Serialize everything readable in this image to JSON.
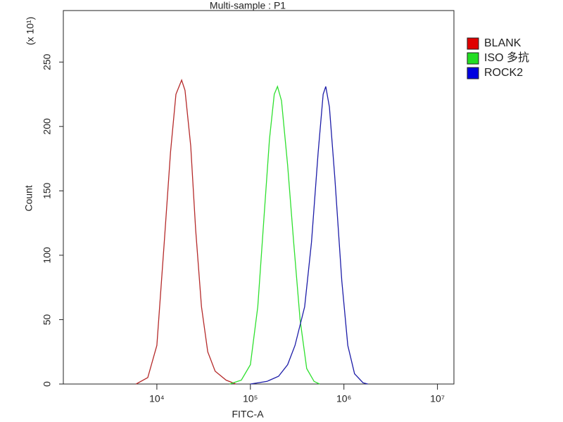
{
  "chart_data": {
    "type": "line",
    "title": "Multi-sample : P1",
    "x_label": "FITC-A",
    "y_label": "Count",
    "y_multiplier": "(x 10¹)",
    "xscale": "log",
    "xlim": [
      1000,
      15000000
    ],
    "xticks": [
      {
        "value": 10000,
        "label": "10⁴"
      },
      {
        "value": 100000,
        "label": "10⁵"
      },
      {
        "value": 1000000,
        "label": "10⁶"
      },
      {
        "value": 10000000,
        "label": "10⁷"
      }
    ],
    "ylim": [
      0,
      290
    ],
    "yticks": [
      0,
      50,
      100,
      150,
      200,
      250
    ],
    "legend": "right",
    "series": [
      {
        "name": "BLANK",
        "color": "#b52a2a",
        "legend_color": "#e00000",
        "x": [
          6000,
          8000,
          10000,
          12000,
          14000,
          16000,
          18400,
          20000,
          23000,
          26000,
          30000,
          35000,
          42000,
          55000,
          70000
        ],
        "values": [
          0,
          5,
          30,
          110,
          180,
          225,
          236,
          228,
          185,
          120,
          60,
          25,
          10,
          3,
          0
        ]
      },
      {
        "name": "ISO 多抗",
        "color": "#2ee02e",
        "legend_color": "#22dd22",
        "x": [
          60000,
          80000,
          100000,
          120000,
          140000,
          160000,
          180000,
          195000,
          215000,
          250000,
          290000,
          340000,
          400000,
          480000,
          550000
        ],
        "values": [
          0,
          3,
          15,
          60,
          130,
          190,
          225,
          231,
          220,
          170,
          110,
          50,
          12,
          2,
          0
        ]
      },
      {
        "name": "ROCK2",
        "color": "#1c1ca8",
        "legend_color": "#0000e0",
        "x": [
          100000,
          150000,
          200000,
          250000,
          300000,
          380000,
          450000,
          530000,
          600000,
          640000,
          700000,
          800000,
          950000,
          1100000,
          1300000,
          1600000,
          1800000
        ],
        "values": [
          0,
          2,
          6,
          15,
          30,
          60,
          110,
          180,
          225,
          231,
          215,
          160,
          80,
          30,
          8,
          1,
          0
        ]
      }
    ]
  }
}
